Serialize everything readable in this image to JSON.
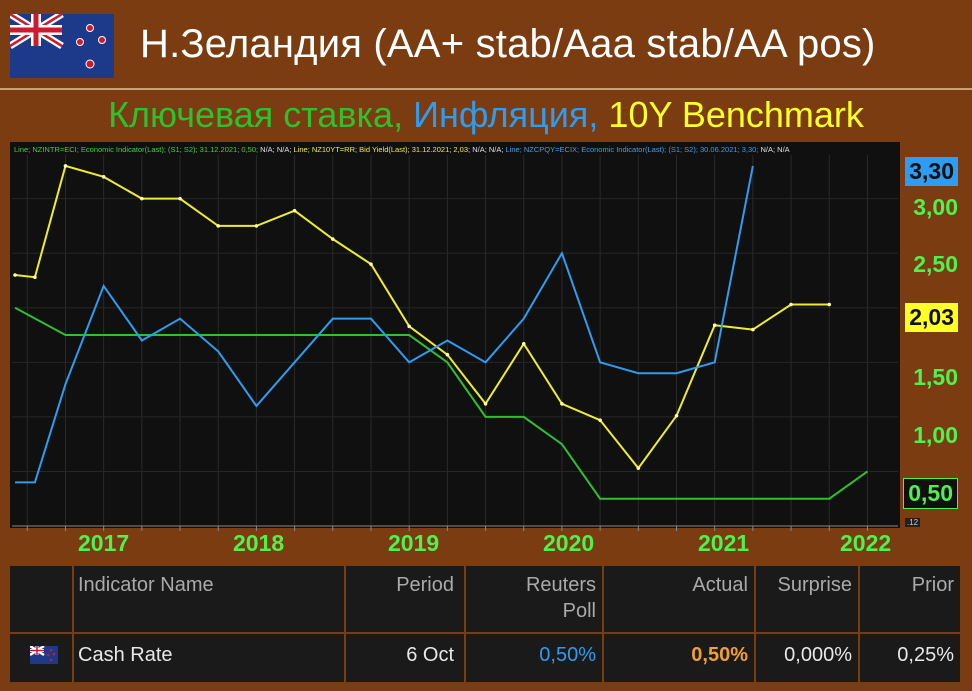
{
  "header": {
    "title_main": "Н.Зеландия (AA+ stab/Aaa stab/AA pos)",
    "subtitle_part1": "Ключевая ставка,",
    "subtitle_part2": "Инфляция,",
    "subtitle_part3": "10Y Benchmark"
  },
  "legend": {
    "green": "Line; NZINTR=ECI; Economic Indicator(Last); (S1; S2); 31.12.2021; 0,50;",
    "green_na": "N/A; N/A;",
    "yellow": "Line; NZ10YT=RR; Bid Yield(Last); 31.12.2021; 2,03;",
    "yellow_na": "N/A; N/A;",
    "blue": "Line; NZCPQY=ECIX; Economic Indicator(Last); (S1; S2); 30.06.2021; 3,30;",
    "blue_na": "N/A; N/A"
  },
  "chart_data": {
    "type": "line",
    "x_labels": [
      "2017",
      "2018",
      "2019",
      "2020",
      "2021",
      "2022"
    ],
    "y_ticks": [
      "3,00",
      "2,50",
      "1,50",
      "1,00"
    ],
    "ylim": [
      0.0,
      3.4
    ],
    "xlim": [
      2016.4,
      2022.2
    ],
    "grid": true,
    "badges": {
      "blue": "3,30",
      "yellow": "2,03",
      "green": "0,50"
    },
    "corner_label": ".12",
    "series": [
      {
        "name": "NZINTR=ECI",
        "color": "#2ec02e",
        "points": [
          [
            2016.42,
            2.0
          ],
          [
            2016.75,
            1.75
          ],
          [
            2017.0,
            1.75
          ],
          [
            2017.25,
            1.75
          ],
          [
            2017.5,
            1.75
          ],
          [
            2017.75,
            1.75
          ],
          [
            2018.0,
            1.75
          ],
          [
            2018.25,
            1.75
          ],
          [
            2018.5,
            1.75
          ],
          [
            2018.75,
            1.75
          ],
          [
            2019.0,
            1.75
          ],
          [
            2019.25,
            1.5
          ],
          [
            2019.5,
            1.0
          ],
          [
            2019.75,
            1.0
          ],
          [
            2020.0,
            0.75
          ],
          [
            2020.25,
            0.25
          ],
          [
            2020.5,
            0.25
          ],
          [
            2020.75,
            0.25
          ],
          [
            2021.0,
            0.25
          ],
          [
            2021.25,
            0.25
          ],
          [
            2021.5,
            0.25
          ],
          [
            2021.75,
            0.25
          ],
          [
            2022.0,
            0.5
          ]
        ]
      },
      {
        "name": "NZ10YT=RR",
        "color": "#eded30",
        "points": [
          [
            2016.42,
            2.3
          ],
          [
            2016.55,
            2.28
          ],
          [
            2016.75,
            3.3
          ],
          [
            2017.0,
            3.2
          ],
          [
            2017.25,
            3.0
          ],
          [
            2017.5,
            3.0
          ],
          [
            2017.75,
            2.75
          ],
          [
            2018.0,
            2.75
          ],
          [
            2018.25,
            2.89
          ],
          [
            2018.5,
            2.63
          ],
          [
            2018.75,
            2.4
          ],
          [
            2019.0,
            1.83
          ],
          [
            2019.25,
            1.57
          ],
          [
            2019.5,
            1.12
          ],
          [
            2019.75,
            1.67
          ],
          [
            2020.0,
            1.12
          ],
          [
            2020.25,
            0.97
          ],
          [
            2020.5,
            0.53
          ],
          [
            2020.75,
            1.01
          ],
          [
            2021.0,
            1.84
          ],
          [
            2021.25,
            1.8
          ],
          [
            2021.5,
            2.03
          ],
          [
            2021.75,
            2.03
          ]
        ]
      },
      {
        "name": "NZCPQY=ECIX",
        "color": "#2e9cf0",
        "points": [
          [
            2016.42,
            0.4
          ],
          [
            2016.55,
            0.4
          ],
          [
            2016.75,
            1.3
          ],
          [
            2017.0,
            2.2
          ],
          [
            2017.25,
            1.7
          ],
          [
            2017.5,
            1.9
          ],
          [
            2017.75,
            1.6
          ],
          [
            2018.0,
            1.1
          ],
          [
            2018.25,
            1.5
          ],
          [
            2018.5,
            1.9
          ],
          [
            2018.75,
            1.9
          ],
          [
            2019.0,
            1.5
          ],
          [
            2019.25,
            1.7
          ],
          [
            2019.5,
            1.5
          ],
          [
            2019.75,
            1.9
          ],
          [
            2020.0,
            2.5
          ],
          [
            2020.25,
            1.5
          ],
          [
            2020.5,
            1.4
          ],
          [
            2020.75,
            1.4
          ],
          [
            2021.0,
            1.5
          ],
          [
            2021.25,
            3.3
          ]
        ]
      }
    ]
  },
  "table": {
    "headers": [
      "Indicator Name",
      "Period",
      "Reuters Poll",
      "Actual",
      "Surprise",
      "Prior"
    ],
    "row": {
      "name": "Cash Rate",
      "period": "6 Oct",
      "poll": "0,50%",
      "actual": "0,50%",
      "surprise": "0,000%",
      "prior": "0,25%"
    },
    "colors": {
      "poll": "#2e9cf0",
      "actual": "#f0a030"
    }
  }
}
